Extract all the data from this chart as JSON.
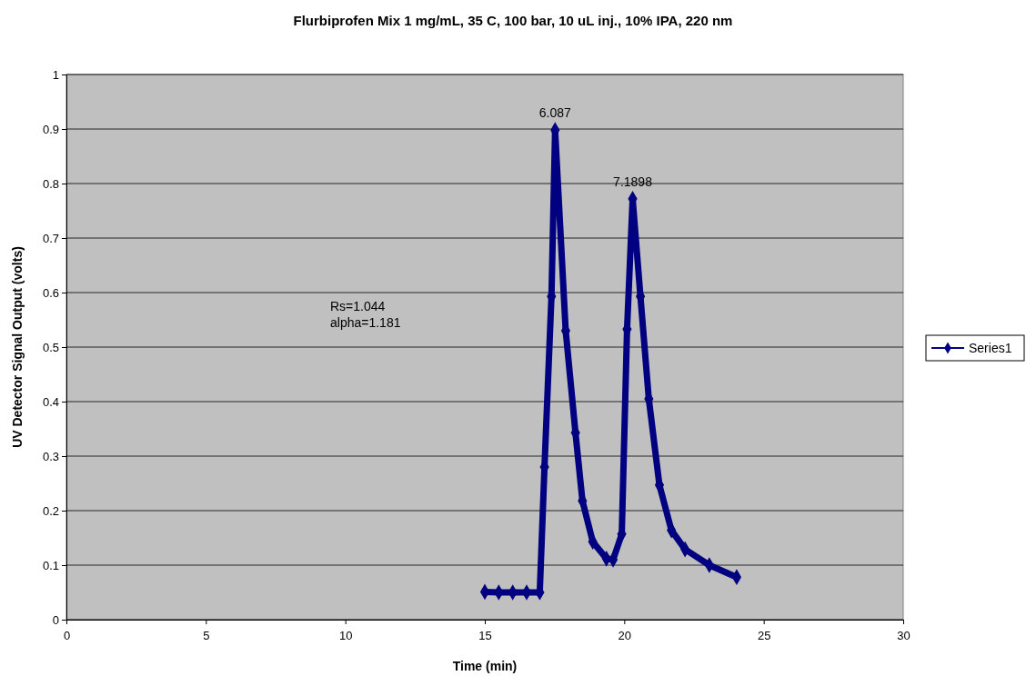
{
  "chart_data": {
    "type": "line",
    "title": "Flurbiprofen Mix 1 mg/mL, 35 C, 100 bar, 10 uL inj., 10% IPA, 220 nm",
    "xlabel": "Time (min)",
    "ylabel": "UV Detector Signal Output (volts)",
    "xlim": [
      0,
      30
    ],
    "xticks": [
      0,
      5,
      10,
      15,
      20,
      25,
      30
    ],
    "ylim": [
      0,
      1
    ],
    "yticks": [
      0,
      0.1,
      0.2,
      0.3,
      0.4,
      0.5,
      0.6,
      0.7,
      0.8,
      0.9,
      1
    ],
    "grid": "y",
    "legend": "right",
    "marker": "diamond",
    "line_style": "solid",
    "x": [
      15,
      15.5,
      16,
      16.5,
      16.97,
      17.14,
      17.39,
      17.52,
      17.9,
      18.25,
      18.5,
      18.87,
      19.36,
      19.6,
      19.91,
      20.1,
      20.3,
      20.58,
      20.88,
      21.26,
      21.69,
      22.18,
      23.05,
      24.03
    ],
    "series": [
      {
        "name": "Series1",
        "color": "#000080",
        "values": [
          0.051,
          0.05,
          0.05,
          0.05,
          0.05,
          0.28,
          0.593,
          0.898,
          0.53,
          0.343,
          0.218,
          0.143,
          0.112,
          0.11,
          0.157,
          0.533,
          0.772,
          0.593,
          0.405,
          0.247,
          0.164,
          0.129,
          0.1,
          0.078
        ]
      }
    ],
    "annotations": [
      {
        "text": "6.087",
        "x": 17.52,
        "y": 0.898
      },
      {
        "text": "7.1898",
        "x": 20.3,
        "y": 0.772
      },
      "Rs=1.044",
      "alpha=1.181"
    ]
  }
}
